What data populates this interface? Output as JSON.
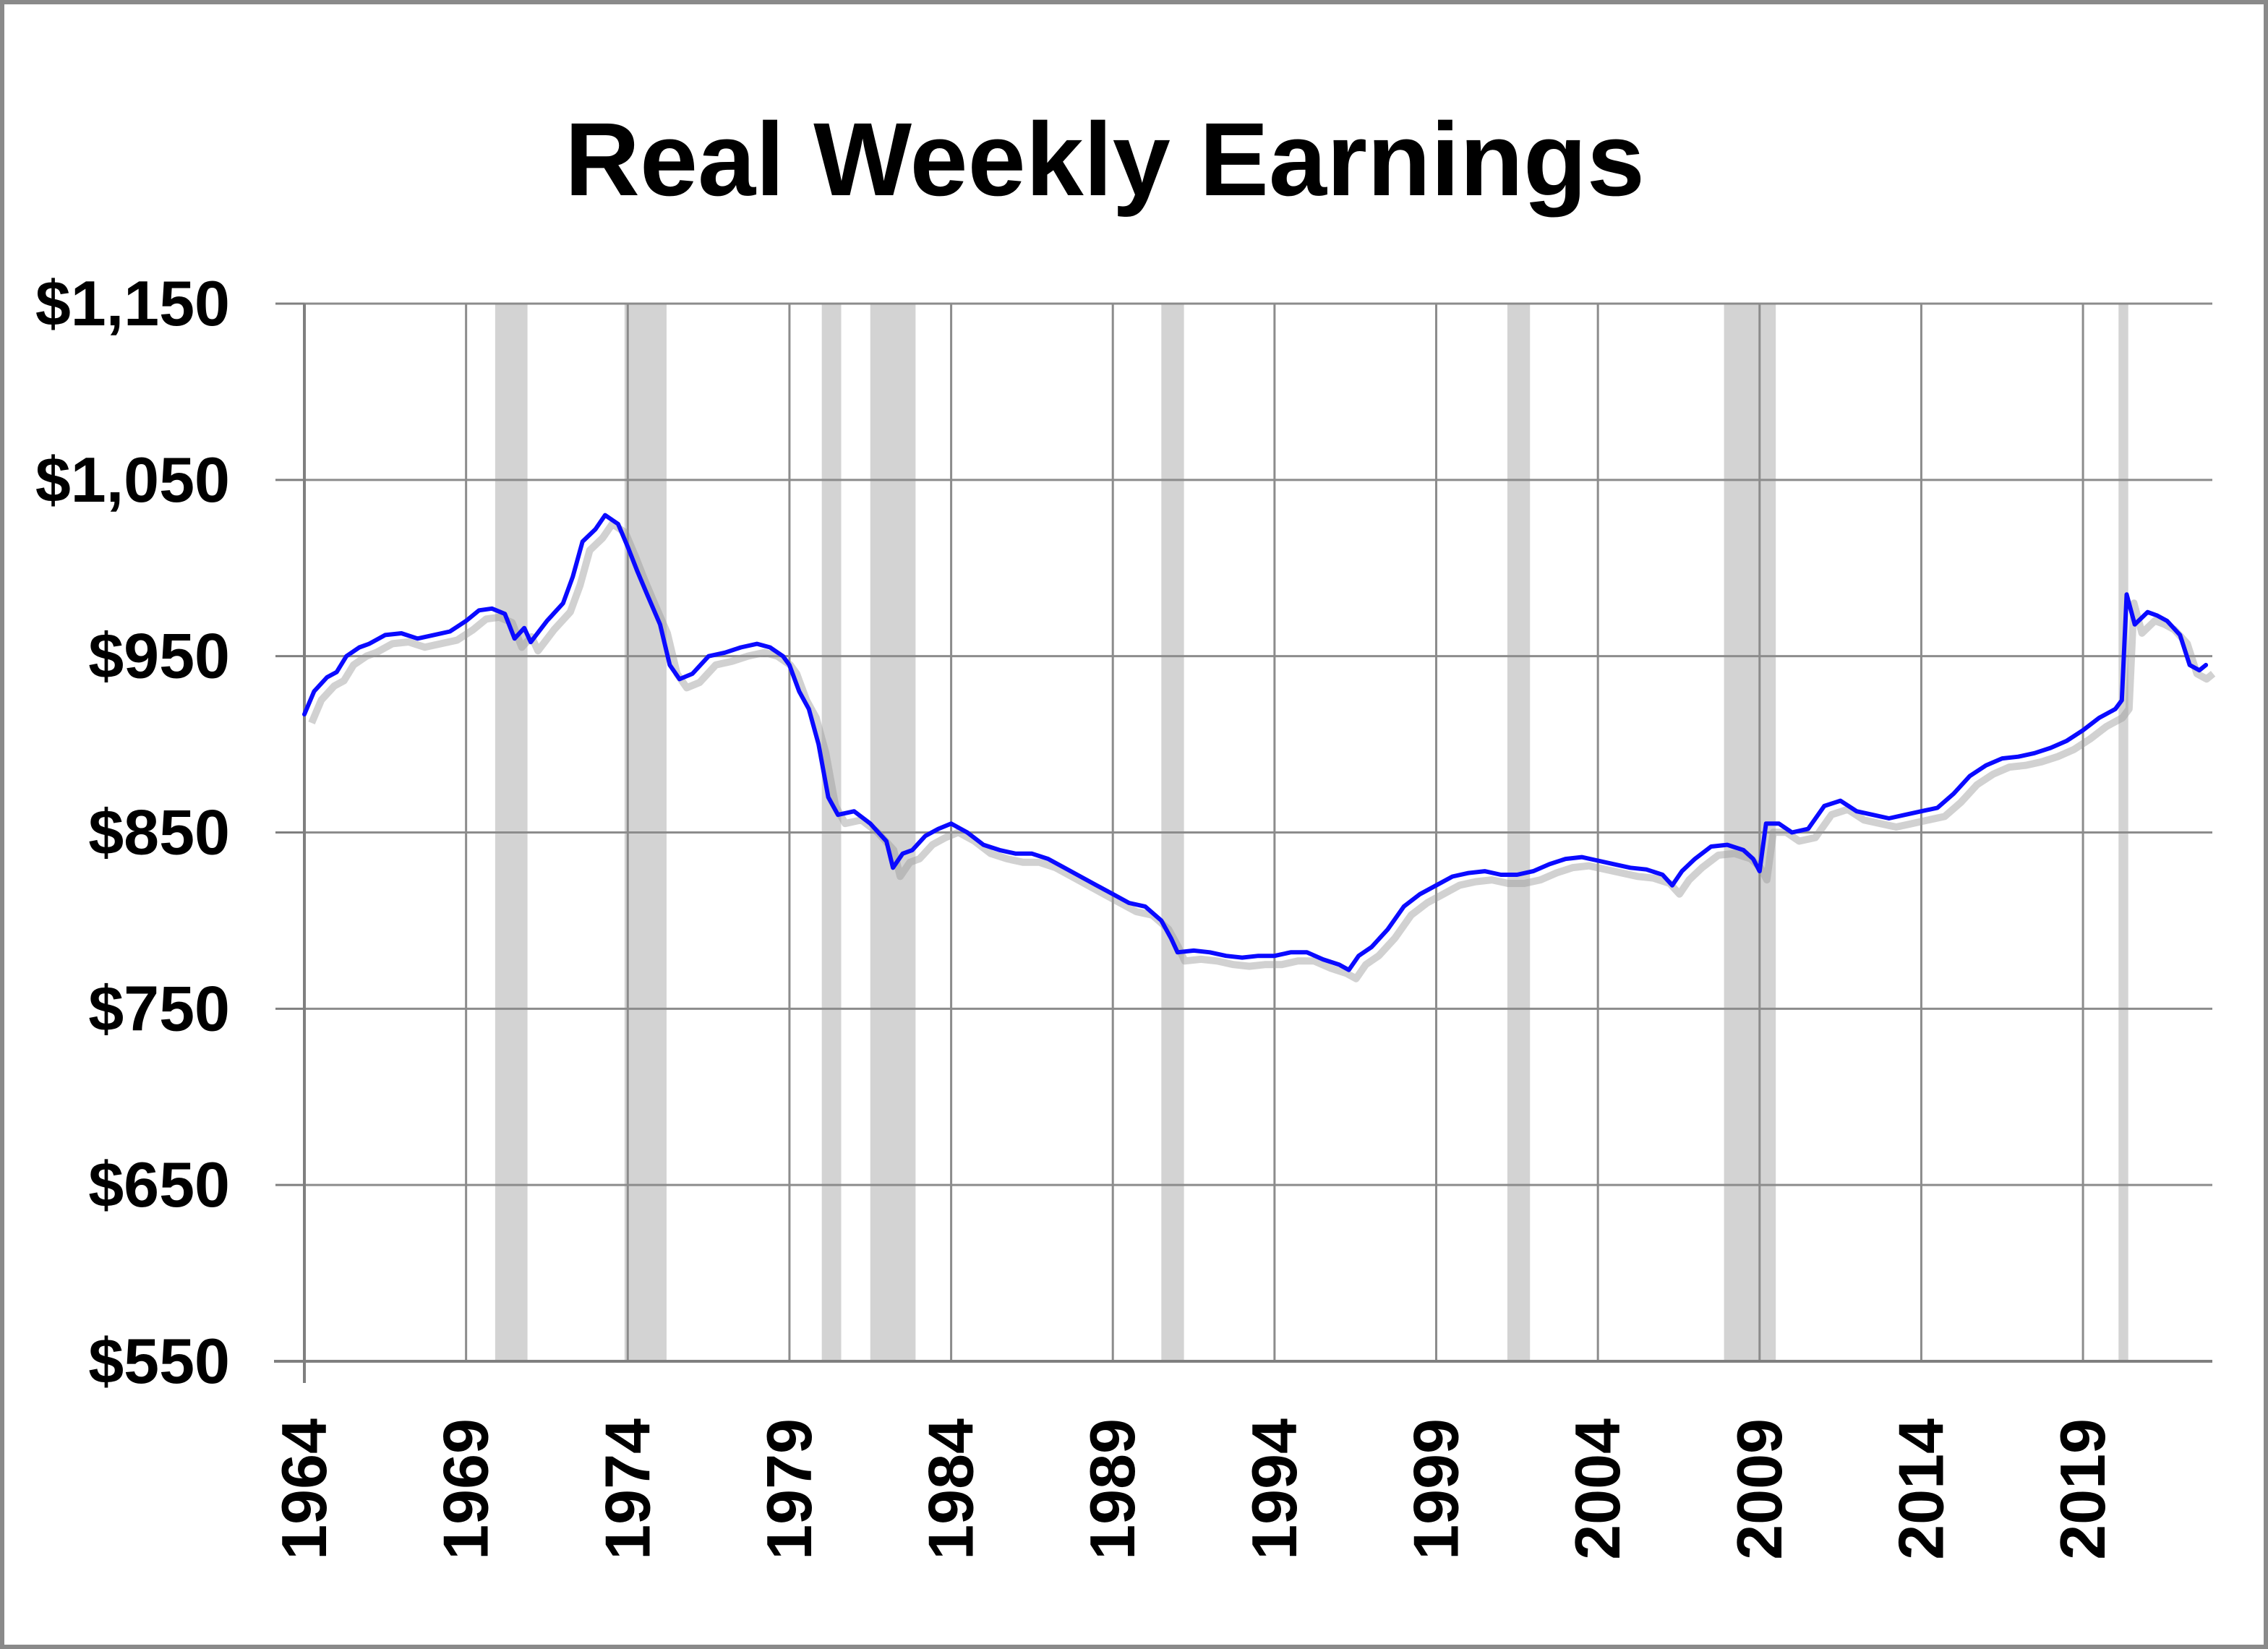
{
  "chart_data": {
    "type": "line",
    "title": "Real Weekly Earnings",
    "xlabel": "",
    "ylabel": "",
    "xlim": [
      1964,
      2023
    ],
    "ylim": [
      550,
      1150
    ],
    "y_ticks": [
      550,
      650,
      750,
      850,
      950,
      1050,
      1150
    ],
    "y_tick_labels": [
      "$550",
      "$650",
      "$750",
      "$850",
      "$950",
      "$1,050",
      "$1,150"
    ],
    "x_ticks": [
      1964,
      1969,
      1974,
      1979,
      1984,
      1989,
      1994,
      1999,
      2004,
      2009,
      2014,
      2019
    ],
    "x_tick_labels": [
      "1964",
      "1969",
      "1974",
      "1979",
      "1984",
      "1989",
      "1994",
      "1999",
      "2004",
      "2009",
      "2014",
      "2019"
    ],
    "grid": true,
    "legend": "none",
    "colors": {
      "line": "#0a0aff",
      "recession": "#d3d3d3",
      "grid": "#8c8c8c"
    },
    "recessions": [
      [
        1969.9,
        1970.9
      ],
      [
        1973.9,
        1975.2
      ],
      [
        1980.0,
        1980.6
      ],
      [
        1981.5,
        1982.9
      ],
      [
        1990.5,
        1991.2
      ],
      [
        2001.2,
        2001.9
      ],
      [
        2007.9,
        2009.5
      ],
      [
        2020.1,
        2020.4
      ]
    ],
    "series": [
      {
        "values": [
          [
            1964.0,
            917
          ],
          [
            1964.3,
            930
          ],
          [
            1964.7,
            938
          ],
          [
            1965.0,
            941
          ],
          [
            1965.3,
            950
          ],
          [
            1965.7,
            955
          ],
          [
            1966.0,
            957
          ],
          [
            1966.5,
            962
          ],
          [
            1967.0,
            963
          ],
          [
            1967.5,
            960
          ],
          [
            1968.0,
            962
          ],
          [
            1968.5,
            964
          ],
          [
            1969.0,
            970
          ],
          [
            1969.4,
            976
          ],
          [
            1969.8,
            977
          ],
          [
            1970.2,
            974
          ],
          [
            1970.5,
            960
          ],
          [
            1970.8,
            966
          ],
          [
            1971.0,
            958
          ],
          [
            1971.5,
            970
          ],
          [
            1972.0,
            980
          ],
          [
            1972.3,
            995
          ],
          [
            1972.6,
            1015
          ],
          [
            1973.0,
            1022
          ],
          [
            1973.3,
            1030
          ],
          [
            1973.7,
            1025
          ],
          [
            1974.0,
            1012
          ],
          [
            1974.3,
            998
          ],
          [
            1974.6,
            985
          ],
          [
            1975.0,
            968
          ],
          [
            1975.3,
            945
          ],
          [
            1975.6,
            937
          ],
          [
            1976.0,
            940
          ],
          [
            1976.5,
            950
          ],
          [
            1977.0,
            952
          ],
          [
            1977.5,
            955
          ],
          [
            1978.0,
            957
          ],
          [
            1978.4,
            955
          ],
          [
            1978.8,
            950
          ],
          [
            1979.0,
            945
          ],
          [
            1979.3,
            930
          ],
          [
            1979.6,
            920
          ],
          [
            1979.9,
            900
          ],
          [
            1980.2,
            870
          ],
          [
            1980.5,
            860
          ],
          [
            1981.0,
            862
          ],
          [
            1981.5,
            855
          ],
          [
            1982.0,
            845
          ],
          [
            1982.2,
            830
          ],
          [
            1982.5,
            838
          ],
          [
            1982.8,
            840
          ],
          [
            1983.2,
            848
          ],
          [
            1983.6,
            852
          ],
          [
            1984.0,
            855
          ],
          [
            1984.5,
            850
          ],
          [
            1985.0,
            843
          ],
          [
            1985.5,
            840
          ],
          [
            1986.0,
            838
          ],
          [
            1986.5,
            838
          ],
          [
            1987.0,
            835
          ],
          [
            1987.5,
            830
          ],
          [
            1988.0,
            825
          ],
          [
            1988.5,
            820
          ],
          [
            1989.0,
            815
          ],
          [
            1989.5,
            810
          ],
          [
            1990.0,
            808
          ],
          [
            1990.5,
            800
          ],
          [
            1990.8,
            790
          ],
          [
            1991.0,
            782
          ],
          [
            1991.5,
            783
          ],
          [
            1992.0,
            782
          ],
          [
            1992.5,
            780
          ],
          [
            1993.0,
            779
          ],
          [
            1993.5,
            780
          ],
          [
            1994.0,
            780
          ],
          [
            1994.5,
            782
          ],
          [
            1995.0,
            782
          ],
          [
            1995.5,
            778
          ],
          [
            1996.0,
            775
          ],
          [
            1996.3,
            772
          ],
          [
            1996.6,
            780
          ],
          [
            1997.0,
            785
          ],
          [
            1997.5,
            795
          ],
          [
            1998.0,
            808
          ],
          [
            1998.5,
            815
          ],
          [
            1999.0,
            820
          ],
          [
            1999.5,
            825
          ],
          [
            2000.0,
            827
          ],
          [
            2000.5,
            828
          ],
          [
            2001.0,
            826
          ],
          [
            2001.5,
            826
          ],
          [
            2002.0,
            828
          ],
          [
            2002.5,
            832
          ],
          [
            2003.0,
            835
          ],
          [
            2003.5,
            836
          ],
          [
            2004.0,
            834
          ],
          [
            2004.5,
            832
          ],
          [
            2005.0,
            830
          ],
          [
            2005.5,
            829
          ],
          [
            2006.0,
            826
          ],
          [
            2006.3,
            820
          ],
          [
            2006.6,
            828
          ],
          [
            2007.0,
            835
          ],
          [
            2007.5,
            842
          ],
          [
            2008.0,
            843
          ],
          [
            2008.5,
            840
          ],
          [
            2008.8,
            835
          ],
          [
            2009.0,
            828
          ],
          [
            2009.2,
            855
          ],
          [
            2009.6,
            855
          ],
          [
            2010.0,
            850
          ],
          [
            2010.5,
            852
          ],
          [
            2011.0,
            865
          ],
          [
            2011.5,
            868
          ],
          [
            2012.0,
            862
          ],
          [
            2012.5,
            860
          ],
          [
            2013.0,
            858
          ],
          [
            2013.5,
            860
          ],
          [
            2014.0,
            862
          ],
          [
            2014.5,
            864
          ],
          [
            2015.0,
            872
          ],
          [
            2015.5,
            882
          ],
          [
            2016.0,
            888
          ],
          [
            2016.5,
            892
          ],
          [
            2017.0,
            893
          ],
          [
            2017.5,
            895
          ],
          [
            2018.0,
            898
          ],
          [
            2018.5,
            902
          ],
          [
            2019.0,
            908
          ],
          [
            2019.5,
            915
          ],
          [
            2020.0,
            920
          ],
          [
            2020.2,
            925
          ],
          [
            2020.35,
            985
          ],
          [
            2020.6,
            968
          ],
          [
            2021.0,
            975
          ],
          [
            2021.3,
            973
          ],
          [
            2021.6,
            970
          ],
          [
            2022.0,
            962
          ],
          [
            2022.3,
            945
          ],
          [
            2022.6,
            942
          ],
          [
            2022.8,
            945
          ]
        ]
      }
    ]
  }
}
